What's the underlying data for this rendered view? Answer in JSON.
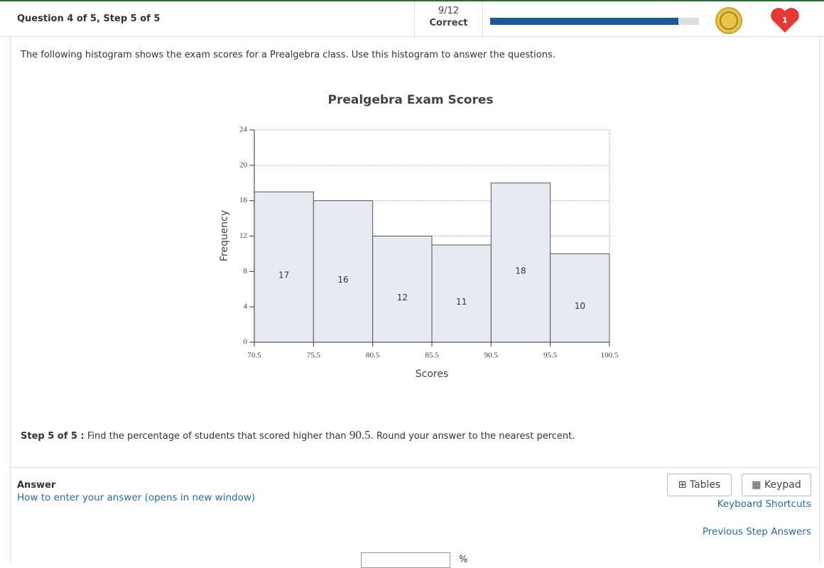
{
  "header": {
    "question": "Question 4 of 5, Step 5 of 5",
    "score": "9/12",
    "score_status": "Correct",
    "progress": 90,
    "hearts": "1"
  },
  "intro": "The following histogram shows the exam scores for a Prealgebra class. Use this histogram to answer the questions.",
  "chart_data": {
    "type": "histogram",
    "title": "Prealgebra Exam Scores",
    "x_label": "Scores",
    "y_label": "Frequency",
    "bins": [
      70.5,
      75.5,
      80.5,
      85.5,
      90.5,
      95.5,
      100.5
    ],
    "values": [
      17,
      16,
      12,
      11,
      18,
      10
    ],
    "xlim": [
      70.5,
      100.5
    ],
    "ylim": [
      0,
      24
    ],
    "yticks": [
      0,
      4,
      8,
      12,
      16,
      20,
      24
    ],
    "grid": true,
    "color": "#e6ebf2"
  },
  "step": {
    "label": "Step 5 of 5 :",
    "text_before": "Find the percentage of students that scored higher than",
    "number": "90.5",
    "text_after": ". Round your answer to the nearest percent."
  },
  "answer": {
    "label": "Answer",
    "help_link": "How to enter your answer (opens in new window)",
    "tables": "Tables",
    "keypad": "Keypad",
    "shortcuts": "Keyboard Shortcuts",
    "previous": "Previous Step Answers",
    "unit": "%"
  }
}
